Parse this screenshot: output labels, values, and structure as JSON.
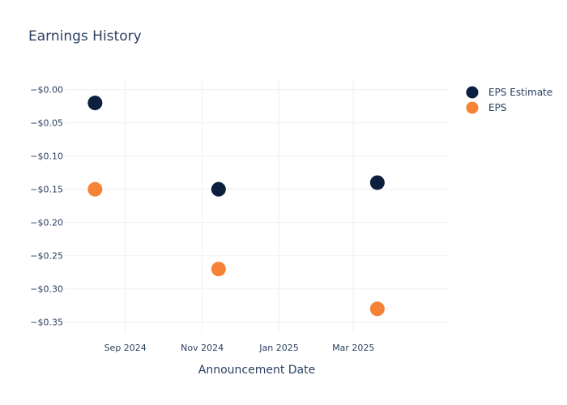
{
  "chart_data": {
    "type": "scatter",
    "title": "Earnings History",
    "xlabel": "Announcement Date",
    "ylabel": "",
    "x_tick_labels": [
      {
        "date": "2024-09-01",
        "label": "Sep 2024"
      },
      {
        "date": "2024-11-01",
        "label": "Nov 2024"
      },
      {
        "date": "2025-01-01",
        "label": "Jan 2025"
      },
      {
        "date": "2025-03-01",
        "label": "Mar 2025"
      }
    ],
    "x_range": [
      "2024-07-15",
      "2025-05-15"
    ],
    "y_ticks": [
      {
        "value": 0.0,
        "label": "−$0.00"
      },
      {
        "value": -0.05,
        "label": "−$0.05"
      },
      {
        "value": -0.1,
        "label": "−$0.10"
      },
      {
        "value": -0.15,
        "label": "−$0.15"
      },
      {
        "value": -0.2,
        "label": "−$0.20"
      },
      {
        "value": -0.25,
        "label": "−$0.25"
      },
      {
        "value": -0.3,
        "label": "−$0.30"
      },
      {
        "value": -0.35,
        "label": "−$0.35"
      }
    ],
    "ylim": [
      -0.365,
      0.013
    ],
    "grid": true,
    "legend_position": "top-right",
    "series": [
      {
        "name": "EPS Estimate",
        "color": "#0c1f3f",
        "points": [
          {
            "x": "2024-08-08",
            "y": -0.02
          },
          {
            "x": "2024-11-14",
            "y": -0.15
          },
          {
            "x": "2025-03-20",
            "y": -0.14
          }
        ]
      },
      {
        "name": "EPS",
        "color": "#f58235",
        "points": [
          {
            "x": "2024-08-08",
            "y": -0.15
          },
          {
            "x": "2024-11-14",
            "y": -0.27
          },
          {
            "x": "2025-03-20",
            "y": -0.33
          }
        ]
      }
    ]
  }
}
